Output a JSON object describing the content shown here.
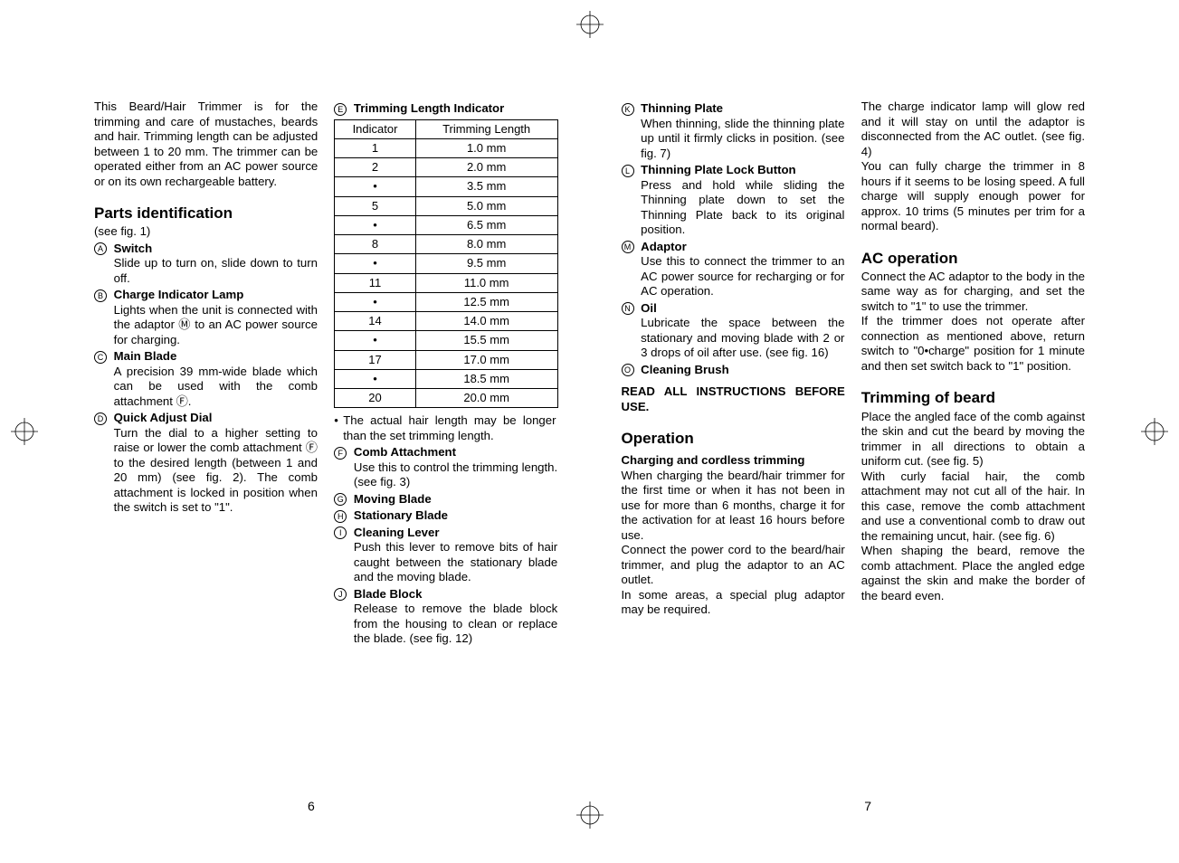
{
  "intro": "This Beard/Hair Trimmer is for the trimming and care of mustaches, beards and hair. Trimming length can be adjusted between 1 to 20 mm. The trimmer can be operated either from an AC power source or on its own rechargeable battery.",
  "parts_heading": "Parts identification",
  "see_fig1": "(see fig. 1)",
  "A": {
    "letter": "A",
    "title": "Switch",
    "text": "Slide up to turn on, slide down to turn off."
  },
  "B": {
    "letter": "B",
    "title": "Charge Indicator Lamp",
    "text": "Lights when the unit is connected with the adaptor Ⓜ to an AC power source for charging."
  },
  "C": {
    "letter": "C",
    "title": "Main Blade",
    "text": "A precision 39 mm-wide blade which can be used with the comb attachment Ⓕ."
  },
  "D": {
    "letter": "D",
    "title": "Quick Adjust Dial",
    "text": "Turn the dial to a higher setting to raise or lower the comb attachment Ⓕ to the desired length (between 1 and 20 mm) (see fig. 2). The comb attachment is locked in position when the switch is set to \"1\"."
  },
  "E": {
    "letter": "E",
    "title": "Trimming Length Indicator"
  },
  "trim_table": {
    "col1": "Indicator",
    "col2": "Trimming Length",
    "rows": [
      [
        "1",
        "1.0 mm"
      ],
      [
        "2",
        "2.0 mm"
      ],
      [
        "•",
        "3.5 mm"
      ],
      [
        "5",
        "5.0 mm"
      ],
      [
        "•",
        "6.5 mm"
      ],
      [
        "8",
        "8.0 mm"
      ],
      [
        "•",
        "9.5 mm"
      ],
      [
        "11",
        "11.0 mm"
      ],
      [
        "•",
        "12.5 mm"
      ],
      [
        "14",
        "14.0 mm"
      ],
      [
        "•",
        "15.5 mm"
      ],
      [
        "17",
        "17.0 mm"
      ],
      [
        "•",
        "18.5 mm"
      ],
      [
        "20",
        "20.0 mm"
      ]
    ]
  },
  "trim_note": "The actual hair length may be longer than the set trimming length.",
  "F": {
    "letter": "F",
    "title": "Comb Attachment",
    "text": "Use this to control the trimming length. (see fig. 3)"
  },
  "G": {
    "letter": "G",
    "title": "Moving Blade"
  },
  "H": {
    "letter": "H",
    "title": "Stationary Blade"
  },
  "I": {
    "letter": "I",
    "title": "Cleaning Lever",
    "text": "Push this lever to remove bits of hair caught between the stationary blade and the moving blade."
  },
  "J": {
    "letter": "J",
    "title": "Blade Block",
    "text": "Release to remove the blade block from the housing to clean or replace the blade. (see fig. 12)"
  },
  "K": {
    "letter": "K",
    "title": "Thinning Plate",
    "text": "When thinning, slide the thinning plate up until it firmly clicks in position. (see fig. 7)"
  },
  "L": {
    "letter": "L",
    "title": "Thinning Plate Lock Button",
    "text": "Press and hold while sliding the Thinning plate down to set the Thinning Plate back to its original position."
  },
  "M": {
    "letter": "M",
    "title": "Adaptor",
    "text": "Use this to connect the trimmer to an AC power source for recharging or for AC operation."
  },
  "N": {
    "letter": "N",
    "title": "Oil",
    "text": "Lubricate the space between the stationary and moving blade with 2 or 3 drops of oil after use. (see fig. 16)"
  },
  "O": {
    "letter": "O",
    "title": "Cleaning Brush"
  },
  "read_all": "READ ALL INSTRUCTIONS BEFORE USE.",
  "operation_heading": "Operation",
  "charging_sub": "Charging and cordless trimming",
  "charging_p1": "When charging the beard/hair trimmer for the first time or when it has not been in use for more than 6 months, charge it for the activation for at least 16 hours before use.",
  "charging_p2": "Connect the power cord to the beard/hair trimmer, and plug the adaptor to an AC outlet.",
  "charging_p3": "In some areas, a special plug adaptor may be required.",
  "col4_p1": "The charge indicator lamp will glow red and it will stay on until the adaptor is disconnected from the AC outlet. (see fig. 4)",
  "col4_p2": "You can fully charge the trimmer in 8 hours if it seems to be losing speed. A full charge will supply enough power for approx. 10 trims (5 minutes per trim for a normal beard).",
  "ac_heading": "AC operation",
  "ac_p1": "Connect the AC adaptor to the body in the same way as for charging, and set the switch to \"1\" to use the trimmer.",
  "ac_p2": "If the trimmer does not operate after connection as mentioned above, return switch to \"0•charge\" position for 1 minute and then set switch back to \"1\" position.",
  "tb_heading": "Trimming of beard",
  "tb_p1": "Place the angled face of the comb against the skin and cut the beard by moving the trimmer in all directions to obtain a uniform cut. (see fig. 5)",
  "tb_p2": "With curly facial hair, the comb attachment may not cut all of the hair. In this case, remove the comb attachment and use a conventional comb to draw out the remaining uncut, hair. (see fig. 6)",
  "tb_p3": "When shaping the beard, remove the comb attachment. Place the angled edge against the skin and make the border of the beard even.",
  "page_left": "6",
  "page_right": "7"
}
